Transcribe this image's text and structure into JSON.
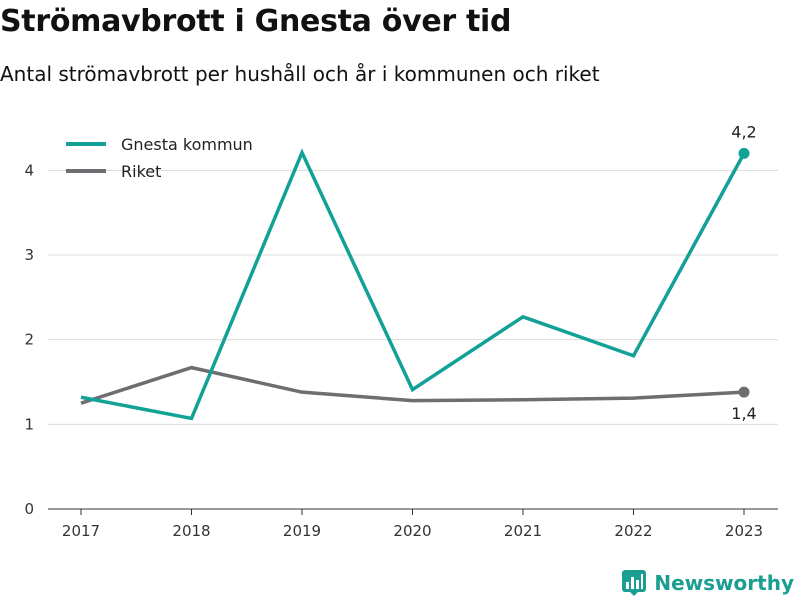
{
  "header": {
    "title": "Strömavbrott i Gnesta över tid",
    "subtitle": "Antal strömavbrott per hushåll och år i kommunen och riket"
  },
  "brand": {
    "name": "Newsworthy",
    "icon": "newsworthy-logo-icon",
    "color": "#1a9e91"
  },
  "chart_data": {
    "type": "line",
    "x": [
      "2017",
      "2018",
      "2019",
      "2020",
      "2021",
      "2022",
      "2023"
    ],
    "series": [
      {
        "name": "Gnesta kommun",
        "color": "#12a197",
        "values": [
          1.32,
          1.07,
          4.21,
          1.41,
          2.27,
          1.81,
          4.2
        ],
        "end_label": "4,2"
      },
      {
        "name": "Riket",
        "color": "#6d6d72",
        "values": [
          1.25,
          1.67,
          1.38,
          1.28,
          1.29,
          1.31,
          1.38
        ],
        "end_label": "1,4"
      }
    ],
    "y_ticks": [
      0,
      1,
      2,
      3,
      4
    ],
    "ylim": [
      0,
      4.5
    ],
    "xlabel": "",
    "ylabel": "",
    "grid": true,
    "legend": "top-left"
  }
}
